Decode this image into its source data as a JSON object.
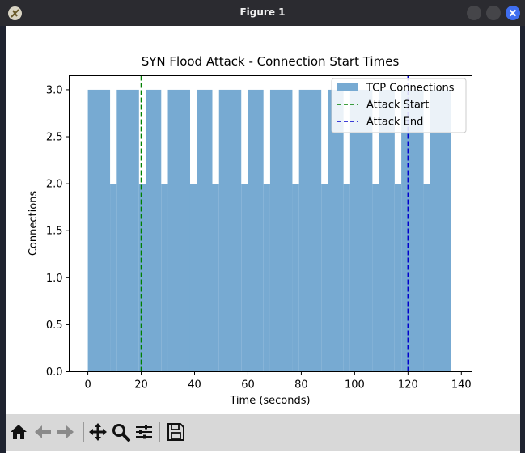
{
  "window": {
    "title": "Figure 1"
  },
  "toolbar": {
    "buttons": [
      {
        "name": "home-icon"
      },
      {
        "name": "back-icon"
      },
      {
        "name": "forward-icon"
      },
      {
        "name": "pan-icon"
      },
      {
        "name": "zoom-icon"
      },
      {
        "name": "subplots-icon"
      },
      {
        "name": "save-icon"
      }
    ]
  },
  "colors": {
    "bar": "#77aad2",
    "attack_start": "#008000",
    "attack_end": "#0000cc"
  },
  "chart_data": {
    "type": "bar",
    "title": "SYN Flood Attack - Connection Start Times",
    "xlabel": "Time (seconds)",
    "ylabel": "Connections",
    "xlim": [
      -7,
      144
    ],
    "ylim": [
      0,
      3.15
    ],
    "xticks": [
      0,
      20,
      40,
      60,
      80,
      100,
      120,
      140
    ],
    "yticks": [
      0.0,
      0.5,
      1.0,
      1.5,
      2.0,
      2.5,
      3.0
    ],
    "ytick_labels": [
      "0.0",
      "0.5",
      "1.0",
      "1.5",
      "2.0",
      "2.5",
      "3.0"
    ],
    "bins": [
      {
        "x0": 0,
        "x1": 8.33,
        "value": 3
      },
      {
        "x0": 8.33,
        "x1": 10.83,
        "value": 2
      },
      {
        "x0": 10.83,
        "x1": 19.17,
        "value": 3
      },
      {
        "x0": 19.17,
        "x1": 21.67,
        "value": 2
      },
      {
        "x0": 21.67,
        "x1": 27.5,
        "value": 3
      },
      {
        "x0": 27.5,
        "x1": 30.0,
        "value": 2
      },
      {
        "x0": 30.0,
        "x1": 38.33,
        "value": 3
      },
      {
        "x0": 38.33,
        "x1": 41.0,
        "value": 2
      },
      {
        "x0": 41.0,
        "x1": 46.67,
        "value": 3
      },
      {
        "x0": 46.67,
        "x1": 49.17,
        "value": 2
      },
      {
        "x0": 49.17,
        "x1": 57.5,
        "value": 3
      },
      {
        "x0": 57.5,
        "x1": 60.0,
        "value": 2
      },
      {
        "x0": 60.0,
        "x1": 65.83,
        "value": 3
      },
      {
        "x0": 65.83,
        "x1": 68.33,
        "value": 2
      },
      {
        "x0": 68.33,
        "x1": 76.67,
        "value": 3
      },
      {
        "x0": 76.67,
        "x1": 79.17,
        "value": 2
      },
      {
        "x0": 79.17,
        "x1": 87.5,
        "value": 3
      },
      {
        "x0": 87.5,
        "x1": 90.0,
        "value": 2
      },
      {
        "x0": 90.0,
        "x1": 95.83,
        "value": 3
      },
      {
        "x0": 95.83,
        "x1": 98.33,
        "value": 2
      },
      {
        "x0": 98.33,
        "x1": 106.67,
        "value": 3
      },
      {
        "x0": 106.67,
        "x1": 109.17,
        "value": 2
      },
      {
        "x0": 109.17,
        "x1": 115.0,
        "value": 3
      },
      {
        "x0": 115.0,
        "x1": 117.5,
        "value": 2
      },
      {
        "x0": 117.5,
        "x1": 125.83,
        "value": 3
      },
      {
        "x0": 125.83,
        "x1": 128.33,
        "value": 2
      },
      {
        "x0": 128.33,
        "x1": 136.0,
        "value": 3
      }
    ],
    "vlines": [
      {
        "x": 20,
        "label": "Attack Start",
        "style": "dashed",
        "color": "#008000"
      },
      {
        "x": 120,
        "label": "Attack End",
        "style": "dashed",
        "color": "#0000cc"
      }
    ],
    "legend": {
      "position": "top-right",
      "entries": [
        {
          "label": "TCP Connections",
          "kind": "patch",
          "color": "#77aad2"
        },
        {
          "label": "Attack Start",
          "kind": "dashed-line",
          "color": "#008000"
        },
        {
          "label": "Attack End",
          "kind": "dashed-line",
          "color": "#0000cc"
        }
      ]
    }
  }
}
